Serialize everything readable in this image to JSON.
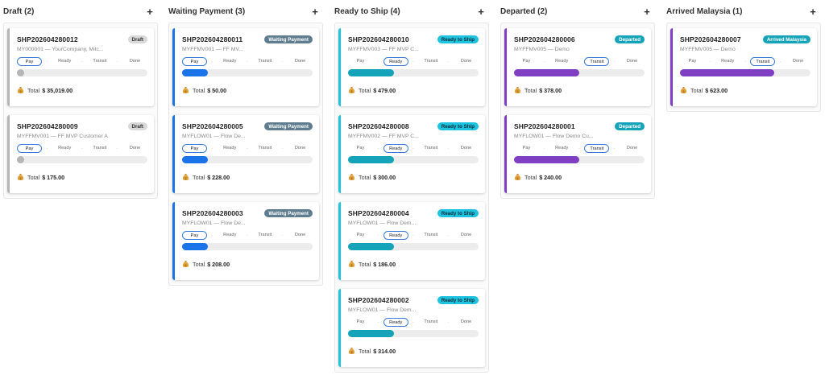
{
  "columns": [
    {
      "title": "Draft (2)",
      "add_label": "+",
      "accent": "#b5b5b5",
      "badge_color": "#d9d9d9",
      "badge_text_color": "#333333",
      "cards": [
        {
          "id": "SHP202604280012",
          "status": "Draft",
          "sub": "MY000001 — YourCompany, Mitc...",
          "active_step": 0,
          "progress": 0.05,
          "total_label": "Total",
          "total": "$ 35,019.00"
        },
        {
          "id": "SHP202604280009",
          "status": "Draft",
          "sub": "MYFFMV001 — FF MVP Customer A",
          "active_step": 0,
          "progress": 0.05,
          "total_label": "Total",
          "total": "$ 175.00"
        }
      ]
    },
    {
      "title": "Waiting Payment (3)",
      "add_label": "+",
      "accent": "#1a73e8",
      "badge_color": "#5f7d8f",
      "badge_text_color": "#ffffff",
      "cards": [
        {
          "id": "SHP202604280011",
          "status": "Waiting Payment",
          "sub": "MYFFMV001 — FF MV...",
          "active_step": 0,
          "progress": 0.2,
          "total_label": "Total",
          "total": "$ 50.00"
        },
        {
          "id": "SHP202604280005",
          "status": "Waiting Payment",
          "sub": "MYFLOW01 — Flow De...",
          "active_step": 0,
          "progress": 0.2,
          "total_label": "Total",
          "total": "$ 228.00"
        },
        {
          "id": "SHP202604280003",
          "status": "Waiting Payment",
          "sub": "MYFLOW01 — Flow De...",
          "active_step": 0,
          "progress": 0.2,
          "total_label": "Total",
          "total": "$ 208.00"
        }
      ]
    },
    {
      "title": "Ready to Ship (4)",
      "add_label": "+",
      "accent": "#1ec3e0",
      "badge_color": "#1ec3e0",
      "badge_text_color": "#0b2a33",
      "cards": [
        {
          "id": "SHP202604280010",
          "status": "Ready to Ship",
          "sub": "MYFFMV003 — FF MVP C...",
          "active_step": 1,
          "progress": 0.35,
          "total_label": "Total",
          "total": "$ 479.00"
        },
        {
          "id": "SHP202604280008",
          "status": "Ready to Ship",
          "sub": "MYFFMV002 — FF MVP C...",
          "active_step": 1,
          "progress": 0.35,
          "total_label": "Total",
          "total": "$ 300.00"
        },
        {
          "id": "SHP202604280004",
          "status": "Ready to Ship",
          "sub": "MYFLOW01 — Flow Dem...",
          "active_step": 1,
          "progress": 0.35,
          "total_label": "Total",
          "total": "$ 186.00"
        },
        {
          "id": "SHP202604280002",
          "status": "Ready to Ship",
          "sub": "MYFLOW01 — Flow Dem...",
          "active_step": 1,
          "progress": 0.35,
          "total_label": "Total",
          "total": "$ 314.00"
        }
      ]
    },
    {
      "title": "Departed (2)",
      "add_label": "+",
      "accent": "#7e3fc2",
      "badge_color": "#14a3b8",
      "badge_text_color": "#ffffff",
      "cards": [
        {
          "id": "SHP202604280006",
          "status": "Departed",
          "sub": "MYFFMV005 — Demo",
          "active_step": 2,
          "progress": 0.5,
          "total_label": "Total",
          "total": "$ 378.00"
        },
        {
          "id": "SHP202604280001",
          "status": "Departed",
          "sub": "MYFLOW01 — Flow Demo Cu...",
          "active_step": 2,
          "progress": 0.5,
          "total_label": "Total",
          "total": "$ 240.00"
        }
      ]
    },
    {
      "title": "Arrived Malaysia (1)",
      "add_label": "+",
      "accent": "#7e3fc2",
      "badge_color": "#14a3b8",
      "badge_text_color": "#ffffff",
      "cards": [
        {
          "id": "SHP202604280007",
          "status": "Arrived Malaysia",
          "sub": "MYFFMV005 — Demo",
          "active_step": 2,
          "progress": 0.72,
          "total_label": "Total",
          "total": "$ 623.00"
        }
      ]
    }
  ],
  "steps": [
    "Pay",
    "Ready",
    "Transit",
    "Done"
  ],
  "step_separator": "·",
  "fill_colors": {
    "Draft": "#b5b5b5",
    "Waiting Payment": "#1a73e8",
    "Ready to Ship": "#14a3b8",
    "Departed": "#7e3fc2",
    "Arrived Malaysia": "#7e3fc2"
  },
  "icons": {
    "add": "plus-icon",
    "total": "money-bag-icon"
  }
}
